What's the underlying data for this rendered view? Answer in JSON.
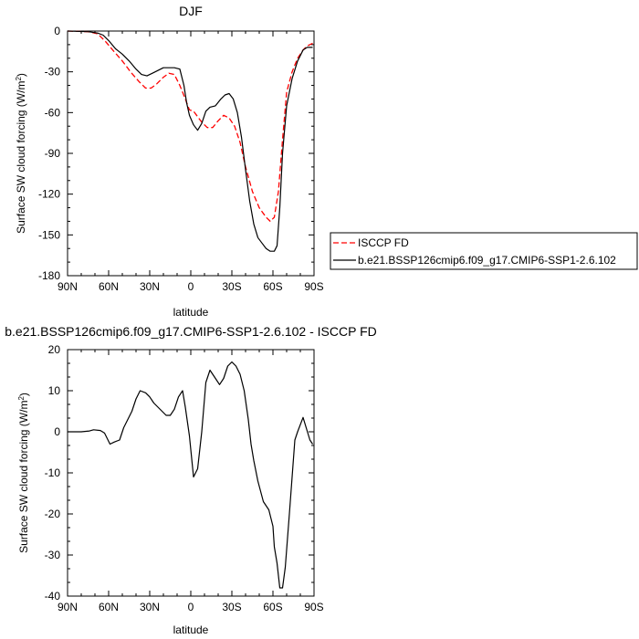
{
  "chart_data": [
    {
      "type": "line",
      "title": "DJF",
      "xlabel": "latitude",
      "ylabel": "Surface SW cloud forcing (W/m",
      "ylabel_sup": "2",
      "ylabel_close": ")",
      "xlim": [
        90,
        -90
      ],
      "ylim": [
        -180,
        0
      ],
      "x_ticks": [
        90,
        60,
        30,
        0,
        -30,
        -60,
        -90
      ],
      "x_tick_labels": [
        "90N",
        "60N",
        "30N",
        "0",
        "30S",
        "60S",
        "90S"
      ],
      "y_ticks": [
        0,
        -30,
        -60,
        -90,
        -120,
        -150,
        -180
      ],
      "y_tick_labels": [
        "0",
        "-30",
        "-60",
        "-90",
        "-120",
        "-150",
        "-180"
      ],
      "legend": {
        "placement": "right"
      },
      "series": [
        {
          "name": "ISCCP FD",
          "color": "#ff0000",
          "dash": "dashed",
          "x": [
            90,
            75,
            68,
            62,
            57,
            50,
            44,
            38,
            33,
            29,
            25,
            20,
            16,
            12,
            8,
            4,
            1,
            -2,
            -5,
            -8,
            -12,
            -16,
            -20,
            -24,
            -28,
            -32,
            -36,
            -40,
            -45,
            -50,
            -55,
            -58,
            -61,
            -64,
            -67,
            -70,
            -74,
            -78,
            -82,
            -85,
            -89
          ],
          "y": [
            0,
            -0.5,
            -2,
            -8,
            -14,
            -22,
            -30,
            -37,
            -42,
            -42,
            -39,
            -34,
            -31,
            -32,
            -40,
            -50,
            -58,
            -59,
            -63,
            -67,
            -71,
            -71,
            -66,
            -62,
            -64,
            -70,
            -82,
            -100,
            -118,
            -130,
            -137,
            -140,
            -137,
            -118,
            -80,
            -45,
            -30,
            -20,
            -14,
            -11,
            -9
          ]
        },
        {
          "name": "b.e21.BSSP126cmip6.f09_g17.CMIP6-SSP1-2.6.102",
          "color": "#000000",
          "dash": "solid",
          "x": [
            90,
            75,
            68,
            64,
            60,
            55,
            50,
            45,
            40,
            36,
            32,
            28,
            24,
            20,
            16,
            12,
            8,
            5,
            3,
            1,
            -2,
            -5,
            -8,
            -11,
            -14,
            -18,
            -22,
            -25,
            -28,
            -31,
            -34,
            -37,
            -40,
            -43,
            -46,
            -49,
            -52,
            -55,
            -58,
            -61,
            -63,
            -65,
            -67,
            -70,
            -74,
            -78,
            -82,
            -85,
            -89
          ],
          "y": [
            0,
            -0.5,
            -1.5,
            -3,
            -7,
            -13,
            -17,
            -22,
            -28,
            -32,
            -33,
            -31,
            -29,
            -27,
            -27,
            -27,
            -28,
            -40,
            -53,
            -62,
            -69,
            -73,
            -68,
            -59,
            -56,
            -55,
            -50,
            -47,
            -46,
            -50,
            -60,
            -78,
            -102,
            -125,
            -142,
            -152,
            -156,
            -160,
            -162,
            -162,
            -158,
            -130,
            -90,
            -55,
            -35,
            -22,
            -14,
            -12,
            -12
          ]
        }
      ]
    },
    {
      "type": "line",
      "title": "b.e21.BSSP126cmip6.f09_g17.CMIP6-SSP1-2.6.102 - ISCCP FD",
      "xlabel": "latitude",
      "ylabel": "Surface SW cloud forcing (W/m",
      "ylabel_sup": "2",
      "ylabel_close": ")",
      "xlim": [
        90,
        -90
      ],
      "ylim": [
        -40,
        20
      ],
      "x_ticks": [
        90,
        60,
        30,
        0,
        -30,
        -60,
        -90
      ],
      "x_tick_labels": [
        "90N",
        "60N",
        "30N",
        "0",
        "30S",
        "60S",
        "90S"
      ],
      "y_ticks": [
        20,
        10,
        0,
        -10,
        -20,
        -30,
        -40
      ],
      "y_tick_labels": [
        "20",
        "10",
        "0",
        "-10",
        "-20",
        "-30",
        "-40"
      ],
      "series": [
        {
          "color": "#000000",
          "dash": "solid",
          "x": [
            90,
            80,
            74,
            71,
            66,
            63,
            59,
            56,
            52,
            49,
            46,
            43,
            40,
            37,
            33,
            30,
            27,
            24,
            21,
            18,
            15,
            12,
            9,
            6,
            4,
            1,
            -2,
            -5,
            -8,
            -11,
            -14,
            -18,
            -21,
            -24,
            -27,
            -30,
            -33,
            -36,
            -39,
            -42,
            -44,
            -46,
            -49,
            -53,
            -57,
            -60,
            -61,
            -63,
            -65,
            -67,
            -69,
            -72,
            -76,
            -78,
            -82,
            -87,
            -89
          ],
          "y": [
            0,
            0,
            0.2,
            0.5,
            0.3,
            -0.3,
            -3,
            -2.5,
            -2,
            1,
            3,
            5,
            8,
            10,
            9.5,
            8.5,
            7,
            6,
            5,
            4,
            4,
            5.5,
            8.5,
            10,
            6,
            -1,
            -11,
            -9,
            0,
            12,
            15,
            13,
            11.5,
            13,
            16,
            17,
            16,
            14,
            10,
            3,
            -3,
            -7,
            -12,
            -17,
            -19,
            -23,
            -28,
            -32,
            -38,
            -38,
            -33,
            -20,
            -2,
            0,
            3.5,
            -2,
            -3
          ]
        }
      ]
    }
  ]
}
